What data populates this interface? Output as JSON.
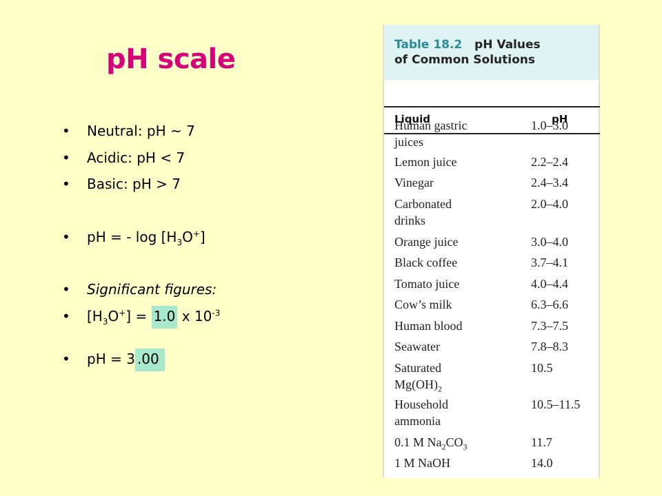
{
  "slide": {
    "title": "pH scale",
    "bullet_char": "•",
    "bullets": [
      {
        "text": "Neutral: pH ~ 7"
      },
      {
        "text": "Acidic: pH < 7"
      },
      {
        "text": "Basic: pH > 7"
      }
    ],
    "formula": {
      "prefix": "pH = - log [H",
      "sub": "3",
      "mid": "O",
      "sup": "+",
      "suffix": "]"
    },
    "sig_fig_label": "Significant figures:",
    "conc": {
      "open": "[H",
      "sub": "3",
      "o": "O",
      "sup": "+",
      "close_eq": "] = ",
      "value": "1.0",
      "times": " x 10",
      "exp": "-3"
    },
    "ph_result": {
      "before": "pH = 3",
      "highlight": ".00"
    }
  },
  "table": {
    "number": "Table 18.2",
    "title_line1": "pH Values",
    "title_line2": "of Common Solutions",
    "col_liquid": "Liquid",
    "col_ph": "pH",
    "rows": [
      {
        "liquid": "Human gastric",
        "liquid2": "juices",
        "ph": "1.0–3.0"
      },
      {
        "liquid": "Lemon juice",
        "ph": "2.2–2.4"
      },
      {
        "liquid": "Vinegar",
        "ph": "2.4–3.4"
      },
      {
        "liquid": "Carbonated",
        "liquid2": "drinks",
        "ph": "2.0–4.0"
      },
      {
        "liquid": "Orange juice",
        "ph": "3.0–4.0"
      },
      {
        "liquid": "Black coffee",
        "ph": "3.7–4.1"
      },
      {
        "liquid": "Tomato juice",
        "ph": "4.0–4.4"
      },
      {
        "liquid": "Cow’s milk",
        "ph": "6.3–6.6"
      },
      {
        "liquid": "Human blood",
        "ph": "7.3–7.5"
      },
      {
        "liquid": "Seawater",
        "ph": "7.8–8.3"
      },
      {
        "liquid": "Saturated",
        "liquid2_main": "Mg(OH)",
        "liquid2_sub": "2",
        "ph": "10.5"
      },
      {
        "liquid": "Household",
        "liquid2": "ammonia",
        "ph": "10.5–11.5"
      },
      {
        "liquid_main": "0.1 M Na",
        "liquid_sub": "2",
        "liquid_tail": "CO",
        "liquid_sub2": "3",
        "ph": "11.7"
      },
      {
        "liquid": "1 M NaOH",
        "ph": "14.0"
      }
    ]
  }
}
